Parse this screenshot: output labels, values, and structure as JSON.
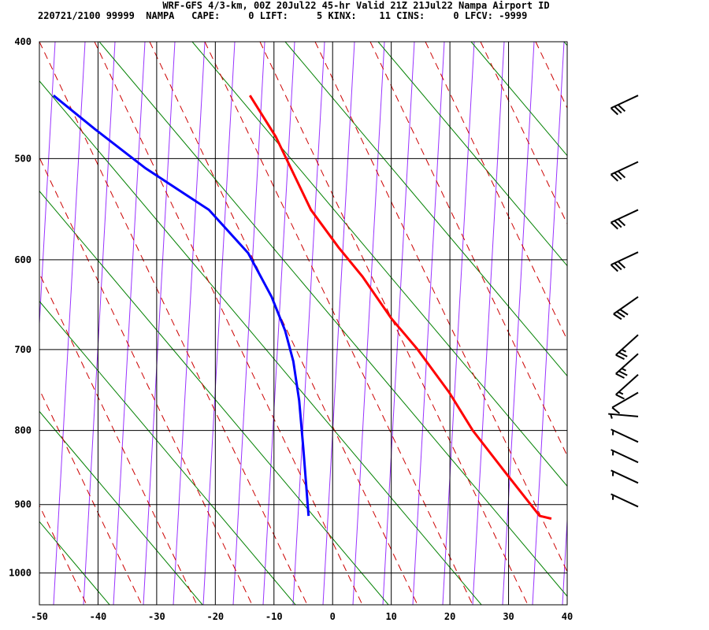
{
  "header": {
    "line1": "WRF-GFS 4/3-km, 00Z 20Jul22 45-hr Valid 21Z 21Jul22 Nampa Airport ID",
    "line2": "220721/2100 99999  NAMPA   CAPE:     0 LIFT:     5 KINX:    11 CINS:     0 LFCV: -9999"
  },
  "chart_data": {
    "type": "line",
    "title": "WRF-GFS 4/3-km, 00Z 20Jul22 45-hr Valid 21Z 21Jul22 Nampa Airport ID",
    "xlabel": "",
    "ylabel": "",
    "xlim": [
      -50,
      40
    ],
    "ylim": [
      1050,
      400
    ],
    "x_ticks": [
      "-50",
      "-40",
      "-30",
      "-20",
      "-10",
      "0",
      "10",
      "20",
      "30",
      "40"
    ],
    "y_ticks": [
      "400",
      "500",
      "600",
      "700",
      "800",
      "900",
      "1000"
    ],
    "grid": true,
    "series": [
      {
        "name": "temperature",
        "color": "#ff0000",
        "points": [
          [
            -14.1,
            444
          ],
          [
            -9.7,
            480
          ],
          [
            -3.7,
            549
          ],
          [
            1.0,
            587
          ],
          [
            5.1,
            618
          ],
          [
            10.0,
            664
          ],
          [
            14.5,
            700
          ],
          [
            19.9,
            752
          ],
          [
            23.9,
            800
          ],
          [
            29.3,
            854
          ],
          [
            35.3,
            916
          ],
          [
            37.3,
            920
          ]
        ]
      },
      {
        "name": "dewpoint",
        "color": "#0000ff",
        "points": [
          [
            -47.6,
            444
          ],
          [
            -40.6,
            473
          ],
          [
            -31.9,
            509
          ],
          [
            -21.1,
            549
          ],
          [
            -14.4,
            593
          ],
          [
            -10.4,
            640
          ],
          [
            -8.1,
            678
          ],
          [
            -6.7,
            714
          ],
          [
            -5.7,
            762
          ],
          [
            -5.0,
            823
          ],
          [
            -4.1,
            916
          ]
        ]
      }
    ],
    "wind_barbs": [
      {
        "p": 444,
        "dir": 245,
        "kt": 30
      },
      {
        "p": 503,
        "dir": 245,
        "kt": 30
      },
      {
        "p": 549,
        "dir": 245,
        "kt": 30
      },
      {
        "p": 592,
        "dir": 245,
        "kt": 30
      },
      {
        "p": 640,
        "dir": 235,
        "kt": 30
      },
      {
        "p": 683,
        "dir": 228,
        "kt": 25
      },
      {
        "p": 705,
        "dir": 228,
        "kt": 25
      },
      {
        "p": 730,
        "dir": 228,
        "kt": 15
      },
      {
        "p": 752,
        "dir": 240,
        "kt": 10
      },
      {
        "p": 782,
        "dir": 275,
        "kt": 5
      },
      {
        "p": 815,
        "dir": 295,
        "kt": 5
      },
      {
        "p": 842,
        "dir": 295,
        "kt": 5
      },
      {
        "p": 870,
        "dir": 295,
        "kt": 5
      },
      {
        "p": 903,
        "dir": 295,
        "kt": 5
      }
    ]
  }
}
